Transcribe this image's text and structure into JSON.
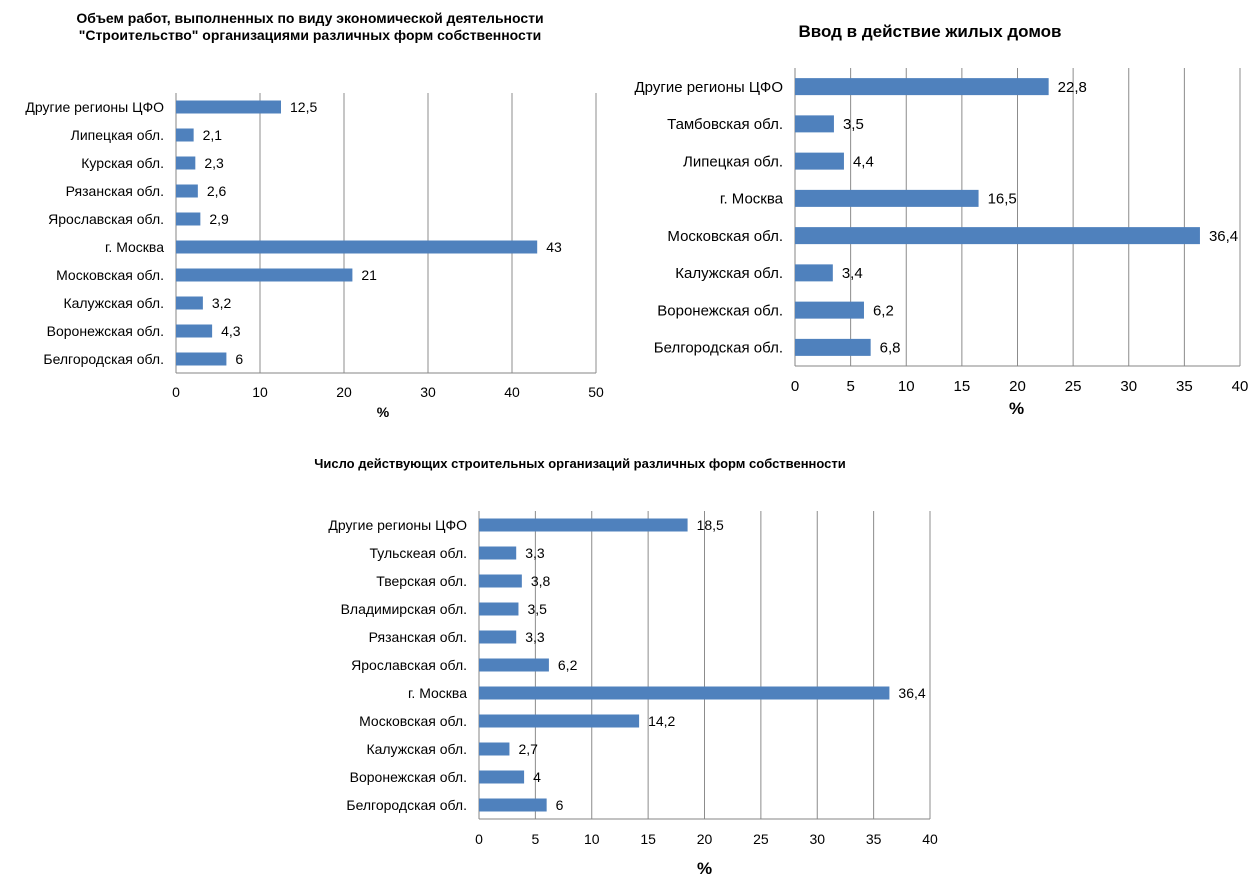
{
  "chart_data": [
    {
      "type": "bar",
      "orientation": "horizontal",
      "title": "Объем работ, выполненных по виду экономической деятельности \"Строительство\" организациями различных форм собственности",
      "xlabel": "%",
      "xlim": [
        0,
        50
      ],
      "x_ticks": [
        "0",
        "10",
        "20",
        "30",
        "40",
        "50"
      ],
      "grid": "vertical",
      "bar_color": "#4f81bd",
      "categories": [
        "Другие регионы ЦФО",
        "Липецкая обл.",
        "Курская обл.",
        "Рязанская обл.",
        "Ярославская обл.",
        "г. Москва",
        "Московская обл.",
        "Калужская  обл.",
        "Воронежская обл.",
        "Белгородская обл."
      ],
      "values": [
        12.5,
        2.1,
        2.3,
        2.6,
        2.9,
        43,
        21,
        3.2,
        4.3,
        6
      ],
      "value_labels": [
        "12,5",
        "2,1",
        "2,3",
        "2,6",
        "2,9",
        "43",
        "21",
        "3,2",
        "4,3",
        "6"
      ]
    },
    {
      "type": "bar",
      "orientation": "horizontal",
      "title": "Ввод в действие жилых домов",
      "xlabel": "%",
      "xlim": [
        0,
        40
      ],
      "x_ticks": [
        "0",
        "5",
        "10",
        "15",
        "20",
        "25",
        "30",
        "35",
        "40"
      ],
      "grid": "vertical",
      "bar_color": "#4f81bd",
      "categories": [
        "Другие регионы ЦФО",
        "Тамбовская обл.",
        "Липецкая обл.",
        "г. Москва",
        "Московская обл.",
        "Калужская обл.",
        "Воронежская обл.",
        "Белгородская обл."
      ],
      "values": [
        22.8,
        3.5,
        4.4,
        16.5,
        36.4,
        3.4,
        6.2,
        6.8
      ],
      "value_labels": [
        "22,8",
        "3,5",
        "4,4",
        "16,5",
        "36,4",
        "3,4",
        "6,2",
        "6,8"
      ]
    },
    {
      "type": "bar",
      "orientation": "horizontal",
      "title": "Число действующих строительных организаций различных форм собственности",
      "xlabel": "%",
      "xlim": [
        0,
        40
      ],
      "x_ticks": [
        "0",
        "5",
        "10",
        "15",
        "20",
        "25",
        "30",
        "35",
        "40"
      ],
      "grid": "vertical",
      "bar_color": "#4f81bd",
      "categories": [
        "Другие регионы ЦФО",
        "Тульскеая обл.",
        "Тверская обл.",
        "Владимирская обл.",
        "Рязанская обл.",
        "Ярославская обл.",
        "г. Москва",
        "Московская обл.",
        "Калужская обл.",
        "Воронежская обл.",
        "Белгородская обл."
      ],
      "values": [
        18.5,
        3.3,
        3.8,
        3.5,
        3.3,
        6.2,
        36.4,
        14.2,
        2.7,
        4,
        6
      ],
      "value_labels": [
        "18,5",
        "3,3",
        "3,8",
        "3,5",
        "3,3",
        "6,2",
        "36,4",
        "14,2",
        "2,7",
        "4",
        "6"
      ]
    }
  ]
}
